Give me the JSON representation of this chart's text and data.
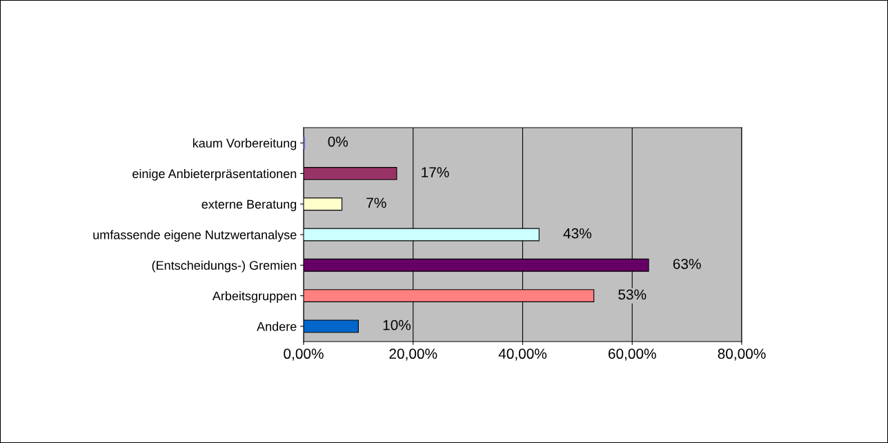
{
  "chart_data": {
    "type": "bar",
    "orientation": "horizontal",
    "categories": [
      "kaum Vorbereitung",
      "einige Anbieterpräsentationen",
      "externe Beratung",
      "umfassende eigene Nutzwertanalyse",
      "(Entscheidungs-) Gremien",
      "Arbeitsgruppen",
      "Andere"
    ],
    "values": [
      0,
      17,
      7,
      43,
      63,
      53,
      10
    ],
    "colors": [
      "#6666cc",
      "#993366",
      "#ffffcc",
      "#ccffff",
      "#660066",
      "#ff8080",
      "#0066cc"
    ],
    "value_labels": [
      "0%",
      "17%",
      "7%",
      "43%",
      "63%",
      "53%",
      "10%"
    ],
    "xlim": [
      0,
      80
    ],
    "xticks": [
      {
        "value": 0,
        "label": "0,00%"
      },
      {
        "value": 20,
        "label": "20,00%"
      },
      {
        "value": 40,
        "label": "40,00%"
      },
      {
        "value": 60,
        "label": "60,00%"
      },
      {
        "value": 80,
        "label": "80,00%"
      }
    ],
    "grid": "x",
    "legend": false
  }
}
